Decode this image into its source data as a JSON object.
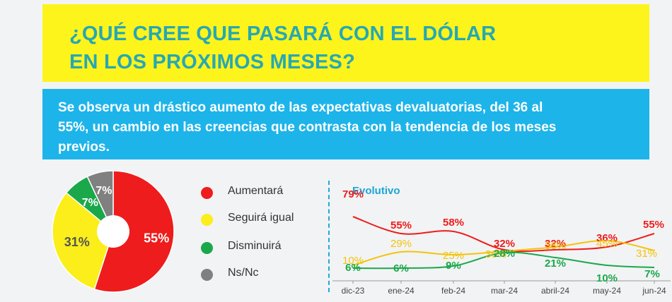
{
  "header": {
    "title_line1": "¿QUÉ CREE QUE PASARÁ CON EL DÓLAR",
    "title_line2": "EN LOS PRÓXIMOS MESES?",
    "subtitle_line1": "Se observa un drástico aumento de las expectativas devaluatorias, del 36 al",
    "subtitle_line2": "55%, un cambio en las creencias que contrasta con la tendencia de los meses",
    "subtitle_line3": "previos."
  },
  "legend": [
    {
      "label": "Aumentará",
      "color": "#ee1c1c"
    },
    {
      "label": "Seguirá igual",
      "color": "#fbee1a"
    },
    {
      "label": "Disminuirá",
      "color": "#1aa84b"
    },
    {
      "label": "Ns/Nc",
      "color": "#808080"
    }
  ],
  "chart_data": [
    {
      "type": "pie",
      "labels": [
        "Aumentará",
        "Seguirá igual",
        "Disminuirá",
        "Ns/Nc"
      ],
      "values": [
        55,
        31,
        7,
        7
      ],
      "value_labels": [
        "55%",
        "31%",
        "7%",
        "7%"
      ],
      "colors": [
        "#ee1c1c",
        "#fbee1a",
        "#1aa84b",
        "#808080"
      ]
    },
    {
      "type": "line",
      "title": "Evolutivo",
      "categories": [
        "dic-23",
        "ene-24",
        "feb-24",
        "mar-24",
        "abril-24",
        "may-24",
        "jun-24"
      ],
      "series": [
        {
          "name": "Aumentará",
          "color": "#ee1c1c",
          "values": [
            79,
            55,
            58,
            32,
            32,
            36,
            55
          ],
          "labels": [
            "79%",
            "55%",
            "58%",
            "32%",
            "32%",
            "36%",
            "55%"
          ]
        },
        {
          "name": "Seguirá igual",
          "color": "#f2c40c",
          "values": [
            10,
            29,
            25,
            30,
            36,
            45,
            31
          ],
          "labels": [
            "10%",
            "29%",
            "25%",
            "30%",
            "36%",
            "45%",
            "31%"
          ]
        },
        {
          "name": "Disminuirá",
          "color": "#1aa84b",
          "values": [
            6,
            6,
            9,
            28,
            21,
            10,
            7
          ],
          "labels": [
            "6%",
            "6%",
            "9%",
            "28%",
            "21%",
            "10%",
            "7%"
          ]
        }
      ]
    }
  ]
}
